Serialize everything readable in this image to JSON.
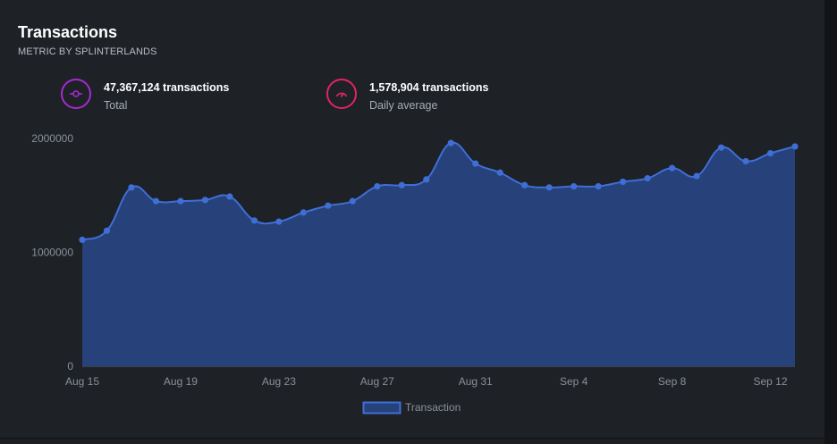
{
  "header": {
    "title": "Transactions",
    "subtitle": "METRIC BY SPLINTERLANDS"
  },
  "stats": [
    {
      "icon": "commit-icon",
      "value": "47,367,124 transactions",
      "label": "Total",
      "color": "#a62ad1"
    },
    {
      "icon": "speedometer-icon",
      "value": "1,578,904 transactions",
      "label": "Daily average",
      "color": "#e0255f"
    }
  ],
  "colors": {
    "line": "#3f6fd6",
    "fill": "#27417a",
    "axis_text": "#8b919a",
    "background": "#1e2126"
  },
  "chart_data": {
    "type": "area",
    "title": "",
    "xlabel": "",
    "ylabel": "",
    "ylim": [
      0,
      2000000
    ],
    "y_ticks": [
      "0",
      "1000000",
      "2000000"
    ],
    "x_ticks": [
      "Aug 15",
      "Aug 19",
      "Aug 23",
      "Aug 27",
      "Aug 31",
      "Sep 4",
      "Sep 8",
      "Sep 12"
    ],
    "x": [
      "Aug 15",
      "Aug 16",
      "Aug 17",
      "Aug 18",
      "Aug 19",
      "Aug 20",
      "Aug 21",
      "Aug 22",
      "Aug 23",
      "Aug 24",
      "Aug 25",
      "Aug 26",
      "Aug 27",
      "Aug 28",
      "Aug 29",
      "Aug 30",
      "Aug 31",
      "Sep 1",
      "Sep 2",
      "Sep 3",
      "Sep 4",
      "Sep 5",
      "Sep 6",
      "Sep 7",
      "Sep 8",
      "Sep 9",
      "Sep 10",
      "Sep 11",
      "Sep 12",
      "Sep 13"
    ],
    "series": [
      {
        "name": "Transaction",
        "values": [
          1110000,
          1190000,
          1570000,
          1450000,
          1450000,
          1460000,
          1490000,
          1280000,
          1270000,
          1350000,
          1410000,
          1450000,
          1580000,
          1590000,
          1640000,
          1960000,
          1780000,
          1700000,
          1590000,
          1570000,
          1580000,
          1580000,
          1620000,
          1650000,
          1740000,
          1670000,
          1920000,
          1800000,
          1870000,
          1930000
        ]
      }
    ],
    "grid": false,
    "legend_position": "bottom"
  }
}
